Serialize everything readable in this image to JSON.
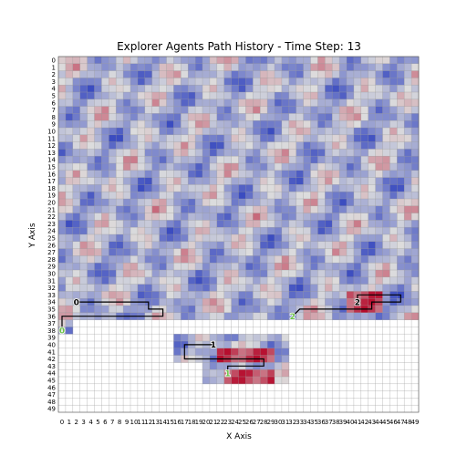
{
  "chart_data": {
    "type": "heatmap",
    "title": "Explorer Agents Path History - Time Step: 13",
    "xlabel": "X Axis",
    "ylabel": "Y Axis",
    "xlim": [
      0,
      49
    ],
    "ylim": [
      0,
      49
    ],
    "x_ticks": [
      "0",
      "1",
      "2",
      "3",
      "4",
      "5",
      "6",
      "7",
      "8",
      "9",
      "10",
      "11",
      "12",
      "13",
      "14",
      "15",
      "16",
      "17",
      "18",
      "19",
      "20",
      "21",
      "22",
      "23",
      "24",
      "25",
      "26",
      "27",
      "28",
      "29",
      "30",
      "31",
      "32",
      "33",
      "34",
      "35",
      "36",
      "37",
      "38",
      "39",
      "40",
      "41",
      "42",
      "43",
      "44",
      "45",
      "46",
      "47",
      "48",
      "49"
    ],
    "y_ticks": [
      "0",
      "1",
      "2",
      "3",
      "4",
      "5",
      "6",
      "7",
      "8",
      "9",
      "10",
      "11",
      "12",
      "13",
      "14",
      "15",
      "16",
      "17",
      "18",
      "19",
      "20",
      "21",
      "22",
      "23",
      "24",
      "25",
      "26",
      "27",
      "28",
      "29",
      "30",
      "31",
      "32",
      "33",
      "34",
      "35",
      "36",
      "37",
      "38",
      "39",
      "40",
      "41",
      "42",
      "43",
      "44",
      "45",
      "46",
      "47",
      "48",
      "49"
    ],
    "grid": true,
    "colormap": "coolwarm",
    "colors": {
      "low": "#3b4cc0",
      "mid": "#dddddd",
      "high": "#b40426"
    },
    "explored_rows_full": 37,
    "explored_regions": [
      {
        "x": [
          0,
          1
        ],
        "y": [
          37,
          38
        ]
      },
      {
        "x": [
          16,
          31
        ],
        "y": [
          39,
          42
        ]
      },
      {
        "x": [
          20,
          31
        ],
        "y": [
          43,
          45
        ]
      }
    ],
    "hotspots": [
      {
        "x": [
          22,
          29
        ],
        "y": [
          41,
          42
        ]
      },
      {
        "x": [
          23,
          29
        ],
        "y": [
          44,
          45
        ]
      },
      {
        "x": [
          40,
          44
        ],
        "y": [
          33,
          35
        ]
      }
    ],
    "agents": [
      {
        "label": "0",
        "color": "#6cc24a",
        "path": [
          [
            2,
            34
          ],
          [
            12,
            34
          ],
          [
            12,
            35
          ],
          [
            14,
            35
          ],
          [
            14,
            36
          ],
          [
            4,
            36
          ],
          [
            0,
            36
          ],
          [
            0,
            38
          ]
        ],
        "label_positions": [
          [
            2,
            34
          ],
          [
            0,
            38
          ]
        ]
      },
      {
        "label": "1",
        "color": "#6cc24a",
        "path": [
          [
            21,
            40
          ],
          [
            17,
            40
          ],
          [
            17,
            42
          ],
          [
            28,
            42
          ],
          [
            28,
            43
          ],
          [
            23,
            43
          ],
          [
            23,
            44
          ]
        ],
        "label_positions": [
          [
            21,
            40
          ],
          [
            23,
            44
          ]
        ]
      },
      {
        "label": "2",
        "color": "#6cc24a",
        "path": [
          [
            41,
            34
          ],
          [
            41,
            33
          ],
          [
            47,
            33
          ],
          [
            47,
            34
          ],
          [
            43,
            34
          ],
          [
            43,
            35
          ],
          [
            33,
            35
          ],
          [
            32,
            36
          ]
        ],
        "label_positions": [
          [
            41,
            34
          ],
          [
            32,
            36
          ]
        ]
      }
    ]
  }
}
